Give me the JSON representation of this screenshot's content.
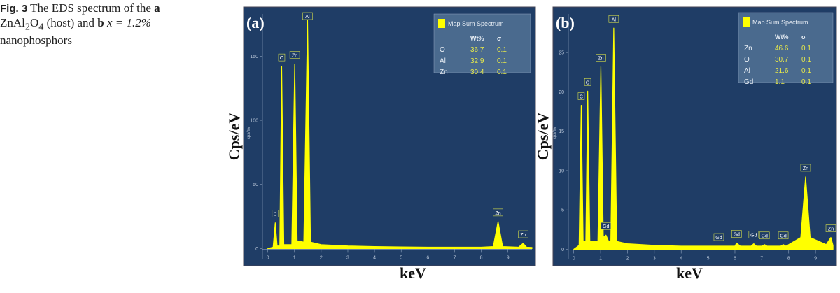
{
  "caption": {
    "label": "Fig. 3",
    "text": [
      "The EDS spectrum of the",
      "a",
      "ZnAl",
      "2",
      "O",
      "4",
      "(host) and",
      "b",
      "x = 1.2%",
      "nanophosphors"
    ]
  },
  "chart_data": [
    {
      "type": "area",
      "title": "(a)",
      "x_label": "keV",
      "y_label": "Cps/eV",
      "inner_y_label": "cps/eV",
      "background": "#1f3d66",
      "series": [
        {
          "name": "Map Sum Spectrum",
          "color": "#ffff00",
          "x": [
            0,
            0.2,
            0.28,
            0.35,
            0.45,
            0.52,
            0.6,
            0.9,
            1.01,
            1.1,
            1.35,
            1.49,
            1.6,
            2,
            3,
            4,
            5,
            6,
            7,
            8,
            8.45,
            8.63,
            8.8,
            9.4,
            9.57,
            9.7,
            9.9
          ],
          "values": [
            0,
            1,
            20,
            2,
            2,
            142,
            3,
            3,
            144,
            6,
            5,
            179,
            5,
            3,
            2,
            1.5,
            1.2,
            1,
            1,
            1,
            1.5,
            21,
            1.5,
            1,
            4,
            1,
            0.8
          ]
        }
      ],
      "xlim": [
        -0.2,
        9.9
      ],
      "ylim": [
        -8,
        183
      ],
      "xticks": [
        0,
        1,
        2,
        3,
        4,
        5,
        6,
        7,
        8,
        9
      ],
      "yticks": [
        0,
        50,
        100,
        150
      ],
      "annotations": [
        {
          "label": "C",
          "x": 0.28,
          "y": 20
        },
        {
          "label": "O",
          "x": 0.52,
          "y": 142
        },
        {
          "label": "Zn",
          "x": 1.01,
          "y": 144
        },
        {
          "label": "Al",
          "x": 1.49,
          "y": 179
        },
        {
          "label": "Zn",
          "x": 8.63,
          "y": 21
        },
        {
          "label": "Zn",
          "x": 9.57,
          "y": 4
        }
      ],
      "table": {
        "header": [
          "Wt%",
          "σ"
        ],
        "rows": [
          [
            "O",
            36.7,
            0.1
          ],
          [
            "Al",
            32.9,
            0.1
          ],
          [
            "Zn",
            30.4,
            0.1
          ]
        ]
      }
    },
    {
      "type": "area",
      "title": "(b)",
      "x_label": "keV",
      "y_label": "Cps/eV",
      "inner_y_label": "cps/eV",
      "background": "#1f3d66",
      "series": [
        {
          "name": "Map Sum Spectrum",
          "color": "#ffff00",
          "x": [
            0,
            0.2,
            0.28,
            0.35,
            0.45,
            0.52,
            0.6,
            0.9,
            1.01,
            1.1,
            1.2,
            1.3,
            1.38,
            1.49,
            1.6,
            2,
            3,
            4,
            5,
            6,
            6.06,
            6.2,
            6.6,
            6.7,
            6.8,
            7,
            7.1,
            7.2,
            7.7,
            7.8,
            7.9,
            8.45,
            8.63,
            8.8,
            9.4,
            9.57,
            9.65
          ],
          "values": [
            0,
            0.5,
            18.3,
            1,
            1,
            20.1,
            1,
            1,
            23.2,
            1.5,
            1.8,
            1,
            1,
            28.1,
            1,
            0.7,
            0.5,
            0.4,
            0.4,
            0.4,
            0.8,
            0.4,
            0.4,
            0.7,
            0.4,
            0.4,
            0.6,
            0.4,
            0.4,
            0.6,
            0.4,
            1.5,
            9.2,
            1.5,
            0.6,
            1.5,
            0.5
          ]
        }
      ],
      "xlim": [
        -0.2,
        9.7
      ],
      "ylim": [
        -1.2,
        29.9
      ],
      "xticks": [
        0,
        1,
        2,
        3,
        4,
        5,
        6,
        7,
        8,
        9
      ],
      "yticks": [
        0,
        5,
        10,
        15,
        20,
        25
      ],
      "annotations": [
        {
          "label": "C",
          "x": 0.28,
          "y": 18.3
        },
        {
          "label": "O",
          "x": 0.52,
          "y": 20.1
        },
        {
          "label": "Zn",
          "x": 1.01,
          "y": 23.2
        },
        {
          "label": "Gd",
          "x": 1.2,
          "y": 1.8
        },
        {
          "label": "Al",
          "x": 1.49,
          "y": 28.1
        },
        {
          "label": "Gd",
          "x": 5.4,
          "y": 0.4
        },
        {
          "label": "Gd",
          "x": 6.06,
          "y": 0.8
        },
        {
          "label": "Gd",
          "x": 6.7,
          "y": 0.7
        },
        {
          "label": "Gd",
          "x": 7.1,
          "y": 0.6
        },
        {
          "label": "Gd",
          "x": 7.8,
          "y": 0.6
        },
        {
          "label": "Zn",
          "x": 8.63,
          "y": 9.2
        },
        {
          "label": "Zn",
          "x": 9.57,
          "y": 1.5
        }
      ],
      "table": {
        "header": [
          "Wt%",
          "σ"
        ],
        "rows": [
          [
            "Zn",
            46.6,
            0.1
          ],
          [
            "O",
            30.7,
            0.1
          ],
          [
            "Al",
            21.6,
            0.1
          ],
          [
            "Gd",
            1.1,
            0.1
          ]
        ]
      }
    }
  ]
}
